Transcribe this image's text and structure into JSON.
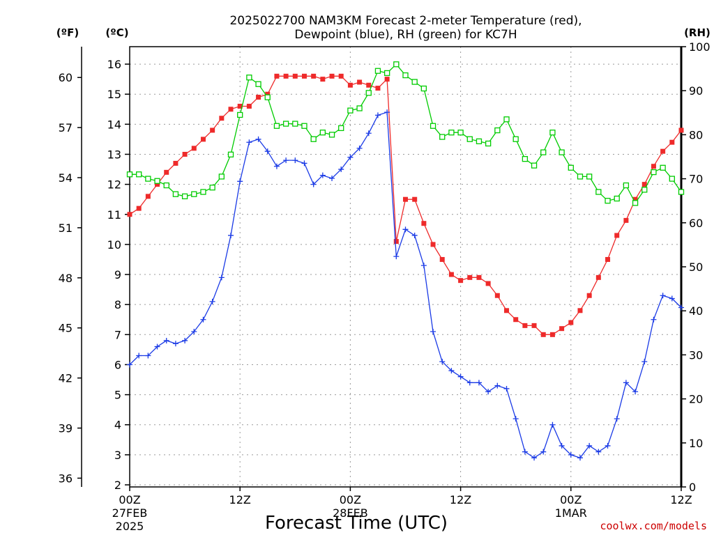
{
  "title_lines": [
    "2025022700 NAM3KM Forecast 2-meter Temperature (red),",
    "Dewpoint (blue), RH (green) for KC7H"
  ],
  "units": {
    "f": "(ºF)",
    "c": "(ºC)",
    "rh": "(RH)"
  },
  "x_ticks": [
    {
      "hour": 0,
      "label": "00Z",
      "sub": [
        "27FEB",
        "2025"
      ]
    },
    {
      "hour": 12,
      "label": "12Z",
      "sub": []
    },
    {
      "hour": 24,
      "label": "00Z",
      "sub": [
        "28FEB"
      ]
    },
    {
      "hour": 36,
      "label": "12Z",
      "sub": []
    },
    {
      "hour": 48,
      "label": "00Z",
      "sub": [
        "1MAR"
      ]
    },
    {
      "hour": 60,
      "label": "12Z",
      "sub": []
    }
  ],
  "x_title": "Forecast Time (UTC)",
  "credit": "coolwx.com/models",
  "colors": {
    "temperature": "#ee2a2a",
    "dewpoint": "#1a3ae6",
    "rh": "#00cc00",
    "grid": "#999999"
  },
  "chart_data": {
    "type": "line",
    "x_unit": "forecast hour from 2025-02-27 00Z",
    "xlim": [
      0,
      60
    ],
    "ylim_c": [
      2,
      16.5
    ],
    "ylim_rh": [
      0,
      100
    ],
    "c_ticks": [
      2,
      3,
      4,
      5,
      6,
      7,
      8,
      9,
      10,
      11,
      12,
      13,
      14,
      15,
      16
    ],
    "f_ticks": [
      36,
      39,
      42,
      45,
      48,
      51,
      54,
      57,
      60
    ],
    "rh_ticks": [
      0,
      10,
      20,
      30,
      40,
      50,
      60,
      70,
      80,
      90,
      100
    ],
    "grid": true,
    "x": [
      0,
      1,
      2,
      3,
      4,
      5,
      6,
      7,
      8,
      9,
      10,
      11,
      12,
      13,
      14,
      15,
      16,
      17,
      18,
      19,
      20,
      21,
      22,
      23,
      24,
      25,
      26,
      27,
      28,
      29,
      30,
      31,
      32,
      33,
      34,
      35,
      36,
      37,
      38,
      39,
      40,
      41,
      42,
      43,
      44,
      45,
      46,
      47,
      48,
      49,
      50,
      51,
      52,
      53,
      54,
      55,
      56,
      57,
      58,
      59,
      60
    ],
    "series": [
      {
        "key": "temperature",
        "axis": "c",
        "marker": "filled-square",
        "values": [
          11.0,
          11.2,
          11.6,
          12.0,
          12.4,
          12.7,
          13.0,
          13.2,
          13.5,
          13.8,
          14.2,
          14.5,
          14.6,
          14.6,
          14.9,
          15.0,
          15.6,
          15.6,
          15.6,
          15.6,
          15.6,
          15.5,
          15.6,
          15.6,
          15.3,
          15.4,
          15.3,
          15.2,
          15.5,
          10.1,
          11.5,
          11.5,
          10.7,
          10.0,
          9.5,
          9.0,
          8.8,
          8.9,
          8.9,
          8.7,
          8.3,
          7.8,
          7.5,
          7.3,
          7.3,
          7.0,
          7.0,
          7.2,
          7.4,
          7.8,
          8.3,
          8.9,
          9.5,
          10.3,
          10.8,
          11.5,
          12.0,
          12.6,
          13.1,
          13.4,
          13.8
        ]
      },
      {
        "key": "dewpoint",
        "axis": "c",
        "marker": "plus",
        "values": [
          6.0,
          6.3,
          6.3,
          6.6,
          6.8,
          6.7,
          6.8,
          7.1,
          7.5,
          8.1,
          8.9,
          10.3,
          12.1,
          13.4,
          13.5,
          13.1,
          12.6,
          12.8,
          12.8,
          12.7,
          12.0,
          12.3,
          12.2,
          12.5,
          12.9,
          13.2,
          13.7,
          14.3,
          14.4,
          9.6,
          10.5,
          10.3,
          9.3,
          7.1,
          6.1,
          5.8,
          5.6,
          5.4,
          5.4,
          5.1,
          5.3,
          5.2,
          4.2,
          3.1,
          2.9,
          3.1,
          4.0,
          3.3,
          3.0,
          2.9,
          3.3,
          3.1,
          3.3,
          4.2,
          5.4,
          5.1,
          6.1,
          7.5,
          8.3,
          8.2,
          7.9
        ]
      },
      {
        "key": "rh",
        "axis": "rh",
        "marker": "open-square",
        "values": [
          71,
          71,
          70,
          69.5,
          68.5,
          66.5,
          66,
          66.5,
          67,
          68,
          70.5,
          75.5,
          84.5,
          93,
          91.5,
          88.5,
          82,
          82.5,
          82.5,
          82,
          79,
          80.5,
          80,
          81.5,
          85.5,
          86,
          89.5,
          94.5,
          94,
          96,
          93.5,
          92,
          90.5,
          82,
          79.5,
          80.5,
          80.5,
          79,
          78.5,
          78,
          81,
          83.5,
          79,
          74.5,
          73,
          76,
          80.5,
          76,
          72.5,
          70.5,
          70.5,
          67,
          65,
          65.5,
          68.5,
          64.5,
          67.5,
          71.5,
          72.5,
          70,
          67
        ]
      }
    ]
  }
}
